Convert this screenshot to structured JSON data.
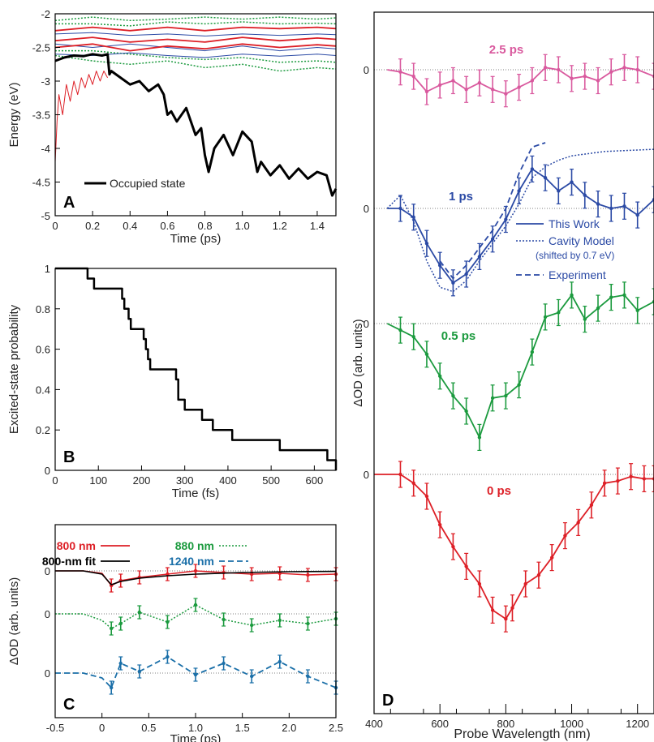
{
  "figure": {
    "panels": [
      "A",
      "B",
      "C",
      "D"
    ]
  },
  "chart_data": [
    {
      "id": "A",
      "type": "line",
      "panel_label": "A",
      "xlabel": "Time  (ps)",
      "ylabel": "Energy (eV)",
      "xlim": [
        0,
        1.5
      ],
      "ylim": [
        -5,
        -2
      ],
      "xticks": [
        0,
        0.2,
        0.4,
        0.6,
        0.8,
        1.0,
        1.2,
        1.4
      ],
      "xtick_labels": [
        "0",
        "0.2",
        "0.4",
        "0.6",
        "0.8",
        "1.0",
        "1.2",
        "1.4"
      ],
      "yticks": [
        -5,
        -4.5,
        -4,
        -3.5,
        -3,
        -2.5,
        -2
      ],
      "ytick_labels": [
        "-5",
        "-4.5",
        "-4",
        "-3.5",
        "-3",
        "-2.5",
        "-2"
      ],
      "legend": {
        "position": "bottom-left",
        "entries": [
          "Occupied state"
        ]
      },
      "series": [
        {
          "name": "Occupied state",
          "color": "#000000",
          "style": "thick",
          "x": [
            0,
            0.02,
            0.05,
            0.1,
            0.15,
            0.2,
            0.25,
            0.28,
            0.29,
            0.3,
            0.35,
            0.4,
            0.45,
            0.5,
            0.55,
            0.58,
            0.6,
            0.62,
            0.65,
            0.7,
            0.75,
            0.78,
            0.8,
            0.82,
            0.85,
            0.9,
            0.95,
            1.0,
            1.05,
            1.08,
            1.1,
            1.15,
            1.2,
            1.25,
            1.3,
            1.35,
            1.4,
            1.45,
            1.48,
            1.5
          ],
          "y": [
            -2.7,
            -2.68,
            -2.65,
            -2.62,
            -2.63,
            -2.6,
            -2.62,
            -2.6,
            -2.9,
            -2.85,
            -2.95,
            -3.05,
            -3.0,
            -3.15,
            -3.05,
            -3.2,
            -3.5,
            -3.45,
            -3.6,
            -3.4,
            -3.8,
            -3.7,
            -4.1,
            -4.35,
            -4.0,
            -3.8,
            -4.1,
            -3.75,
            -3.9,
            -4.35,
            -4.2,
            -4.4,
            -4.25,
            -4.45,
            -4.3,
            -4.45,
            -4.35,
            -4.4,
            -4.7,
            -4.6
          ]
        },
        {
          "name": "",
          "color": "#dd1f26",
          "style": "thin",
          "x": [
            0,
            0.01,
            0.02,
            0.04,
            0.06,
            0.08,
            0.1,
            0.12,
            0.14,
            0.16,
            0.18,
            0.2,
            0.22,
            0.24,
            0.26,
            0.28
          ],
          "y": [
            -4.2,
            -3.6,
            -3.2,
            -3.5,
            -3.05,
            -3.3,
            -3.0,
            -3.2,
            -2.95,
            -3.1,
            -2.9,
            -3.05,
            -2.85,
            -3.0,
            -2.85,
            -2.95
          ]
        },
        {
          "name": "",
          "color": "#dd1f26",
          "style": "medium",
          "x": [
            0,
            0.2,
            0.4,
            0.6,
            0.8,
            1.0,
            1.2,
            1.4,
            1.5
          ],
          "y": [
            -2.25,
            -2.2,
            -2.25,
            -2.2,
            -2.25,
            -2.2,
            -2.22,
            -2.2,
            -2.22
          ]
        },
        {
          "name": "",
          "color": "#dd1f26",
          "style": "medium",
          "x": [
            0,
            0.2,
            0.4,
            0.6,
            0.8,
            1.0,
            1.2,
            1.4,
            1.5
          ],
          "y": [
            -2.4,
            -2.35,
            -2.42,
            -2.38,
            -2.42,
            -2.35,
            -2.4,
            -2.36,
            -2.38
          ]
        },
        {
          "name": "",
          "color": "#dd1f26",
          "style": "medium",
          "x": [
            0,
            0.2,
            0.4,
            0.6,
            0.8,
            1.0,
            1.2,
            1.4,
            1.5
          ],
          "y": [
            -2.5,
            -2.45,
            -2.55,
            -2.48,
            -2.52,
            -2.45,
            -2.5,
            -2.46,
            -2.48
          ]
        },
        {
          "name": "",
          "color": "#2b4aa5",
          "style": "thin",
          "x": [
            0,
            0.2,
            0.4,
            0.6,
            0.8,
            1.0,
            1.2,
            1.4,
            1.5
          ],
          "y": [
            -2.3,
            -2.28,
            -2.32,
            -2.3,
            -2.33,
            -2.3,
            -2.32,
            -2.3,
            -2.31
          ]
        },
        {
          "name": "",
          "color": "#2b4aa5",
          "style": "thin",
          "x": [
            0,
            0.2,
            0.4,
            0.6,
            0.8,
            1.0,
            1.2,
            1.4,
            1.5
          ],
          "y": [
            -2.45,
            -2.5,
            -2.45,
            -2.5,
            -2.55,
            -2.48,
            -2.55,
            -2.5,
            -2.52
          ]
        },
        {
          "name": "",
          "color": "#2b4aa5",
          "style": "thin",
          "x": [
            0,
            0.2,
            0.4,
            0.6,
            0.8,
            1.0,
            1.2,
            1.4,
            1.5
          ],
          "y": [
            -2.6,
            -2.62,
            -2.58,
            -2.62,
            -2.65,
            -2.6,
            -2.63,
            -2.6,
            -2.62
          ]
        },
        {
          "name": "",
          "color": "#1b9a3e",
          "style": "dotted",
          "x": [
            0,
            0.2,
            0.4,
            0.6,
            0.8,
            1.0,
            1.2,
            1.4,
            1.5
          ],
          "y": [
            -2.1,
            -2.05,
            -2.1,
            -2.08,
            -2.05,
            -2.08,
            -2.05,
            -2.08,
            -2.06
          ]
        },
        {
          "name": "",
          "color": "#1b9a3e",
          "style": "dotted",
          "x": [
            0,
            0.2,
            0.4,
            0.6,
            0.8,
            1.0,
            1.2,
            1.4,
            1.5
          ],
          "y": [
            -2.15,
            -2.15,
            -2.18,
            -2.12,
            -2.15,
            -2.12,
            -2.15,
            -2.14,
            -2.15
          ]
        },
        {
          "name": "",
          "color": "#1b9a3e",
          "style": "dotted",
          "x": [
            0,
            0.2,
            0.4,
            0.6,
            0.8,
            1.0,
            1.2,
            1.4,
            1.5
          ],
          "y": [
            -2.62,
            -2.7,
            -2.75,
            -2.7,
            -2.8,
            -2.75,
            -2.85,
            -2.8,
            -2.82
          ]
        },
        {
          "name": "",
          "color": "#1b9a3e",
          "style": "dotted",
          "x": [
            0,
            0.2,
            0.4,
            0.6,
            0.8,
            1.0,
            1.2,
            1.4,
            1.5
          ],
          "y": [
            -2.55,
            -2.55,
            -2.6,
            -2.65,
            -2.68,
            -2.65,
            -2.72,
            -2.7,
            -2.72
          ]
        }
      ]
    },
    {
      "id": "B",
      "type": "line",
      "panel_label": "B",
      "xlabel": "Time (fs)",
      "ylabel": "Excited-state probability",
      "xlim": [
        0,
        650
      ],
      "ylim": [
        0,
        1
      ],
      "xticks": [
        0,
        100,
        200,
        300,
        400,
        500,
        600
      ],
      "xtick_labels": [
        "0",
        "100",
        "200",
        "300",
        "400",
        "500",
        "600"
      ],
      "yticks": [
        0,
        0.2,
        0.4,
        0.6,
        0.8,
        1
      ],
      "ytick_labels": [
        "0",
        "0.2",
        "0.4",
        "0.6",
        "0.8",
        "1"
      ],
      "series": [
        {
          "name": "",
          "color": "#000000",
          "style": "step",
          "x": [
            0,
            60,
            75,
            90,
            150,
            155,
            160,
            170,
            175,
            195,
            205,
            210,
            215,
            220,
            275,
            280,
            285,
            300,
            340,
            365,
            410,
            520,
            620,
            630,
            650
          ],
          "y": [
            1,
            1,
            0.95,
            0.9,
            0.9,
            0.85,
            0.8,
            0.75,
            0.7,
            0.7,
            0.65,
            0.6,
            0.55,
            0.5,
            0.5,
            0.45,
            0.35,
            0.3,
            0.25,
            0.2,
            0.15,
            0.1,
            0.1,
            0.05,
            0
          ]
        }
      ]
    },
    {
      "id": "C",
      "type": "line",
      "panel_label": "C",
      "xlabel": "Time (ps)",
      "ylabel": "ΔOD (arb. units)",
      "xlim": [
        -0.5,
        2.5
      ],
      "xticks": [
        -0.5,
        0,
        0.5,
        1,
        1.5,
        2,
        2.5
      ],
      "xtick_labels": [
        "-0.5",
        "0",
        "0.5",
        "1.0",
        "1.5",
        "2.0",
        "2.5"
      ],
      "baseline_labels": [
        "0",
        "0",
        "0"
      ],
      "legend": {
        "position": "top",
        "entries": [
          "800 nm",
          "800-nm fit",
          "880 nm",
          "1240 nm"
        ]
      },
      "series": [
        {
          "name": "800 nm",
          "color": "#dd1f26",
          "offset": 0,
          "marker": "errorbar",
          "x": [
            -0.5,
            -0.2,
            0,
            0.1,
            0.2,
            0.4,
            0.7,
            1.0,
            1.3,
            1.6,
            1.9,
            2.2,
            2.5
          ],
          "y": [
            0,
            0,
            -0.15,
            -0.9,
            -0.6,
            -0.4,
            -0.2,
            0.0,
            -0.1,
            -0.2,
            -0.15,
            -0.25,
            -0.2
          ]
        },
        {
          "name": "800-nm fit",
          "color": "#000000",
          "offset": 0,
          "x": [
            -0.5,
            -0.2,
            0,
            0.1,
            0.2,
            0.4,
            0.7,
            1.0,
            1.5,
            2.0,
            2.5
          ],
          "y": [
            0,
            0,
            -0.2,
            -0.85,
            -0.65,
            -0.45,
            -0.3,
            -0.2,
            -0.1,
            -0.05,
            -0.03
          ]
        },
        {
          "name": "880 nm",
          "color": "#1b9a3e",
          "offset": -1,
          "marker": "errorbar",
          "style": "dotted",
          "x": [
            -0.5,
            -0.2,
            0,
            0.1,
            0.2,
            0.4,
            0.7,
            1.0,
            1.3,
            1.6,
            1.9,
            2.2,
            2.5
          ],
          "y": [
            0,
            0,
            -0.4,
            -0.9,
            -0.6,
            0.1,
            -0.5,
            0.55,
            -0.35,
            -0.7,
            -0.4,
            -0.6,
            -0.3
          ]
        },
        {
          "name": "1240 nm",
          "color": "#1a6fa8",
          "offset": -2,
          "marker": "errorbar",
          "style": "dashed",
          "x": [
            -0.5,
            -0.2,
            0,
            0.1,
            0.2,
            0.4,
            0.7,
            1.0,
            1.3,
            1.6,
            1.9,
            2.2,
            2.5
          ],
          "y": [
            0,
            0,
            -0.3,
            -0.9,
            0.6,
            0.1,
            1.0,
            -0.1,
            0.6,
            -0.2,
            0.7,
            -0.2,
            -0.9
          ]
        }
      ]
    },
    {
      "id": "D",
      "type": "line",
      "panel_label": "D",
      "xlabel": "Probe Wavelength (nm)",
      "ylabel": "ΔOD (arb. units)",
      "xlim": [
        400,
        1250
      ],
      "xticks": [
        400,
        600,
        800,
        1000,
        1200
      ],
      "xtick_labels": [
        "400",
        "600",
        "800",
        "1000",
        "1200"
      ],
      "baseline_labels": [
        "0",
        "0",
        "0",
        "0"
      ],
      "legend": {
        "position": "middle-right",
        "entries": [
          "This Work",
          "Cavity Model",
          "(shifted by 0.7 eV)",
          "Experiment"
        ]
      },
      "series": [
        {
          "name": "2.5 ps",
          "color": "#d9599e",
          "baseline_index": 0,
          "marker": "errorbar",
          "x": [
            440,
            480,
            520,
            560,
            600,
            640,
            680,
            720,
            760,
            800,
            840,
            880,
            920,
            960,
            1000,
            1040,
            1080,
            1120,
            1160,
            1200,
            1250
          ],
          "y": [
            0,
            -0.1,
            -0.3,
            -1.0,
            -0.7,
            -0.5,
            -0.9,
            -0.6,
            -0.9,
            -1.1,
            -0.8,
            -0.5,
            0.1,
            0.0,
            -0.4,
            -0.3,
            -0.5,
            -0.1,
            0.1,
            0.0,
            -0.3
          ]
        },
        {
          "name": "1 ps",
          "color": "#2b4aa5",
          "baseline_index": 1,
          "marker": "errorbar",
          "x": [
            440,
            480,
            520,
            560,
            600,
            640,
            680,
            720,
            760,
            800,
            840,
            880,
            920,
            960,
            1000,
            1040,
            1080,
            1120,
            1160,
            1200,
            1250
          ],
          "y": [
            0,
            0,
            -0.4,
            -1.6,
            -2.6,
            -3.4,
            -3.0,
            -2.2,
            -1.4,
            -0.5,
            0.8,
            1.8,
            1.4,
            0.8,
            1.2,
            0.6,
            0.2,
            0.0,
            0.1,
            -0.3,
            0.4
          ]
        },
        {
          "name": "0.5 ps",
          "color": "#1b9a3e",
          "baseline_index": 2,
          "marker": "errorbar",
          "x": [
            440,
            480,
            520,
            560,
            600,
            640,
            680,
            720,
            760,
            800,
            840,
            880,
            920,
            960,
            1000,
            1040,
            1080,
            1120,
            1160,
            1200,
            1250
          ],
          "y": [
            0,
            -0.3,
            -0.6,
            -1.4,
            -2.4,
            -3.3,
            -4.0,
            -5.2,
            -3.4,
            -3.3,
            -2.8,
            -1.3,
            0.3,
            0.5,
            1.3,
            0.2,
            0.7,
            1.2,
            1.3,
            0.6,
            1.0
          ]
        },
        {
          "name": "0 ps",
          "color": "#dd1f26",
          "baseline_index": 3,
          "marker": "errorbar",
          "x": [
            400,
            480,
            520,
            560,
            600,
            640,
            680,
            720,
            760,
            800,
            820,
            860,
            900,
            940,
            980,
            1020,
            1060,
            1100,
            1140,
            1180,
            1220,
            1250
          ],
          "y": [
            0,
            0,
            -0.4,
            -1.0,
            -2.3,
            -3.3,
            -4.2,
            -5.0,
            -6.2,
            -6.6,
            -6.1,
            -5.0,
            -4.6,
            -3.8,
            -2.8,
            -2.2,
            -1.4,
            -0.4,
            -0.3,
            -0.1,
            -0.2,
            -0.2
          ]
        },
        {
          "name": "Cavity Model",
          "color": "#2b4aa5",
          "baseline_index": 1,
          "style": "dotted",
          "x": [
            440,
            480,
            520,
            560,
            600,
            640,
            680,
            720,
            760,
            800,
            840,
            880,
            920,
            960,
            1000,
            1100,
            1250
          ],
          "y": [
            0,
            0.6,
            -0.6,
            -2.4,
            -3.6,
            -3.8,
            -3.3,
            -2.4,
            -1.6,
            -0.8,
            0.2,
            1.4,
            1.9,
            2.2,
            2.4,
            2.6,
            2.7
          ]
        },
        {
          "name": "Experiment",
          "color": "#2b4aa5",
          "baseline_index": 1,
          "style": "dashed",
          "x": [
            600,
            640,
            680,
            720,
            760,
            800,
            840,
            880,
            920
          ],
          "y": [
            -2.4,
            -3.2,
            -2.6,
            -1.8,
            -1.0,
            0.0,
            1.6,
            2.8,
            3.0
          ]
        }
      ],
      "annotations": [
        "2.5 ps",
        "1 ps",
        "0.5 ps",
        "0 ps"
      ]
    }
  ]
}
